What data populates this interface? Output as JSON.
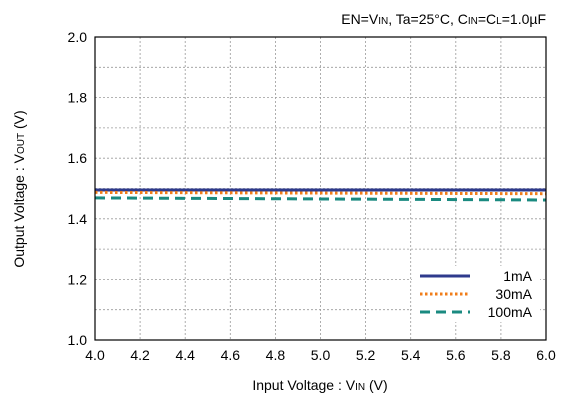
{
  "chart_data": {
    "type": "line",
    "condition": {
      "en_main": "EN=V",
      "en_sub": "IN",
      "ta": ", Ta=25°C, C",
      "cin_sub": "IN",
      "eq": "=C",
      "cl_sub": "L",
      "cap": "=1.0µF"
    },
    "xlabel": {
      "main": "Input Voltage : V",
      "sub": "IN",
      "unit": " (V)"
    },
    "ylabel": {
      "main": "Output Voltage : V",
      "sub": "OUT",
      "unit": " (V)"
    },
    "xlim": [
      4.0,
      6.0
    ],
    "ylim": [
      1.0,
      2.0
    ],
    "xticks": [
      "4.0",
      "4.2",
      "4.4",
      "4.6",
      "4.8",
      "5.0",
      "5.2",
      "5.4",
      "5.6",
      "5.8",
      "6.0"
    ],
    "yticks": [
      "1.0",
      "1.2",
      "1.4",
      "1.6",
      "1.8",
      "2.0"
    ],
    "grid": true,
    "legend_position": "bottom-right",
    "series": [
      {
        "name": "1mA",
        "color": "#2e3a8c",
        "style": "solid",
        "x": [
          4.0,
          6.0
        ],
        "y": [
          1.495,
          1.495
        ]
      },
      {
        "name": "30mA",
        "color": "#f07d1a",
        "style": "dotted",
        "x": [
          4.0,
          6.0
        ],
        "y": [
          1.487,
          1.483
        ]
      },
      {
        "name": "100mA",
        "color": "#1a8a80",
        "style": "dashed",
        "x": [
          4.0,
          6.0
        ],
        "y": [
          1.469,
          1.462
        ]
      }
    ]
  }
}
